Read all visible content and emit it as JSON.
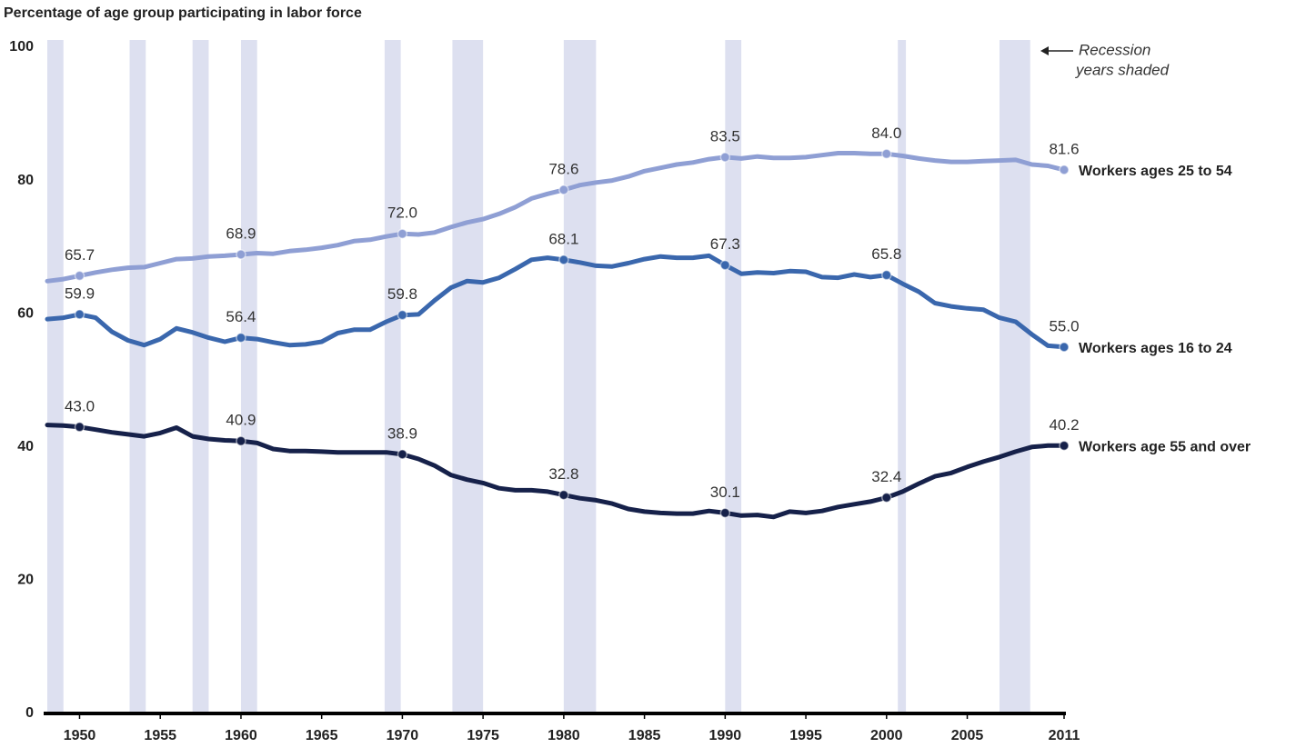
{
  "chart_data": {
    "type": "line",
    "title": "Percentage of age group participating in labor force",
    "annotation": [
      "Recession",
      "years shaded"
    ],
    "x": [
      1948,
      1949,
      1950,
      1951,
      1952,
      1953,
      1954,
      1955,
      1956,
      1957,
      1958,
      1959,
      1960,
      1961,
      1962,
      1963,
      1964,
      1965,
      1966,
      1967,
      1968,
      1969,
      1970,
      1971,
      1972,
      1973,
      1974,
      1975,
      1976,
      1977,
      1978,
      1979,
      1980,
      1981,
      1982,
      1983,
      1984,
      1985,
      1986,
      1987,
      1988,
      1989,
      1990,
      1991,
      1992,
      1993,
      1994,
      1995,
      1996,
      1997,
      1998,
      1999,
      2000,
      2001,
      2002,
      2003,
      2004,
      2005,
      2006,
      2007,
      2008,
      2009,
      2010,
      2011
    ],
    "series": [
      {
        "name": "Workers ages 25 to 54",
        "color": "#8f9fd4",
        "values": [
          64.9,
          65.2,
          65.7,
          66.2,
          66.6,
          66.9,
          67.0,
          67.6,
          68.2,
          68.3,
          68.6,
          68.7,
          68.9,
          69.1,
          69.0,
          69.4,
          69.6,
          69.9,
          70.3,
          70.9,
          71.1,
          71.6,
          72.0,
          71.9,
          72.2,
          73.0,
          73.7,
          74.2,
          75.0,
          76.0,
          77.3,
          78.0,
          78.6,
          79.3,
          79.7,
          80.0,
          80.6,
          81.4,
          81.9,
          82.4,
          82.7,
          83.2,
          83.5,
          83.3,
          83.6,
          83.4,
          83.4,
          83.5,
          83.8,
          84.1,
          84.1,
          84.0,
          84.0,
          83.7,
          83.3,
          83.0,
          82.8,
          82.8,
          82.9,
          83.0,
          83.1,
          82.4,
          82.2,
          81.6
        ],
        "value_labels": [
          null,
          null,
          "65.7",
          null,
          null,
          null,
          null,
          null,
          null,
          null,
          null,
          null,
          "68.9",
          null,
          null,
          null,
          null,
          null,
          null,
          null,
          null,
          null,
          "72.0",
          null,
          null,
          null,
          null,
          null,
          null,
          null,
          null,
          null,
          "78.6",
          null,
          null,
          null,
          null,
          null,
          null,
          null,
          null,
          null,
          "83.5",
          null,
          null,
          null,
          null,
          null,
          null,
          null,
          null,
          null,
          "84.0",
          null,
          null,
          null,
          null,
          null,
          null,
          null,
          null,
          null,
          null,
          "81.6"
        ]
      },
      {
        "name": "Workers ages 16 to 24",
        "color": "#3a67ad",
        "values": [
          59.2,
          59.4,
          59.9,
          59.4,
          57.3,
          56.0,
          55.3,
          56.2,
          57.8,
          57.2,
          56.4,
          55.8,
          56.4,
          56.2,
          55.7,
          55.3,
          55.4,
          55.8,
          57.1,
          57.6,
          57.6,
          58.8,
          59.8,
          59.9,
          62.0,
          63.9,
          64.9,
          64.7,
          65.4,
          66.7,
          68.1,
          68.4,
          68.1,
          67.7,
          67.2,
          67.1,
          67.6,
          68.2,
          68.6,
          68.4,
          68.4,
          68.7,
          67.3,
          66.0,
          66.2,
          66.1,
          66.4,
          66.3,
          65.5,
          65.4,
          65.9,
          65.5,
          65.8,
          64.5,
          63.3,
          61.6,
          61.1,
          60.8,
          60.6,
          59.4,
          58.8,
          56.9,
          55.2,
          55.0
        ],
        "value_labels": [
          null,
          null,
          "59.9",
          null,
          null,
          null,
          null,
          null,
          null,
          null,
          null,
          null,
          "56.4",
          null,
          null,
          null,
          null,
          null,
          null,
          null,
          null,
          null,
          "59.8",
          null,
          null,
          null,
          null,
          null,
          null,
          null,
          null,
          null,
          "68.1",
          null,
          null,
          null,
          null,
          null,
          null,
          null,
          null,
          null,
          "67.3",
          null,
          null,
          null,
          null,
          null,
          null,
          null,
          null,
          null,
          "65.8",
          null,
          null,
          null,
          null,
          null,
          null,
          null,
          null,
          null,
          null,
          "55.0"
        ]
      },
      {
        "name": "Workers age 55 and over",
        "color": "#16214a",
        "values": [
          43.3,
          43.2,
          43.0,
          42.6,
          42.2,
          41.9,
          41.6,
          42.1,
          42.9,
          41.6,
          41.2,
          41.0,
          40.9,
          40.6,
          39.7,
          39.4,
          39.4,
          39.3,
          39.2,
          39.2,
          39.2,
          39.2,
          38.9,
          38.2,
          37.2,
          35.8,
          35.1,
          34.6,
          33.8,
          33.5,
          33.5,
          33.3,
          32.8,
          32.3,
          32.0,
          31.5,
          30.7,
          30.3,
          30.1,
          30.0,
          30.0,
          30.4,
          30.1,
          29.7,
          29.8,
          29.5,
          30.3,
          30.1,
          30.4,
          31.0,
          31.4,
          31.8,
          32.4,
          33.3,
          34.5,
          35.6,
          36.1,
          37.0,
          37.8,
          38.5,
          39.3,
          40.0,
          40.2,
          40.2
        ],
        "value_labels": [
          null,
          null,
          "43.0",
          null,
          null,
          null,
          null,
          null,
          null,
          null,
          null,
          null,
          "40.9",
          null,
          null,
          null,
          null,
          null,
          null,
          null,
          null,
          null,
          "38.9",
          null,
          null,
          null,
          null,
          null,
          null,
          null,
          null,
          null,
          "32.8",
          null,
          null,
          null,
          null,
          null,
          null,
          null,
          null,
          null,
          "30.1",
          null,
          null,
          null,
          null,
          null,
          null,
          null,
          null,
          null,
          "32.4",
          null,
          null,
          null,
          null,
          null,
          null,
          null,
          null,
          null,
          null,
          "40.2"
        ]
      }
    ],
    "recessions": [
      [
        1948,
        1949
      ],
      [
        1953.1,
        1954.1
      ],
      [
        1957,
        1958
      ],
      [
        1960,
        1961
      ],
      [
        1968.9,
        1969.9
      ],
      [
        1973.1,
        1975
      ],
      [
        1980,
        1982
      ],
      [
        1990,
        1991
      ],
      [
        2000.7,
        2001.2
      ],
      [
        2007,
        2008.9
      ]
    ],
    "recession_color": "#dde0f0",
    "xlim": [
      1948,
      2011
    ],
    "xticks": [
      1950,
      1955,
      1960,
      1965,
      1970,
      1975,
      1980,
      1985,
      1990,
      1995,
      2000,
      2005,
      2011
    ],
    "ylim": [
      0,
      100
    ],
    "yticks": [
      0,
      20,
      40,
      60,
      80,
      100
    ],
    "grid": false
  }
}
